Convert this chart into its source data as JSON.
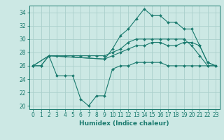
{
  "title": "",
  "xlabel": "Humidex (Indice chaleur)",
  "background_color": "#cce8e4",
  "grid_color": "#aacfcb",
  "line_color": "#1a7a6e",
  "xlim": [
    -0.5,
    23.5
  ],
  "ylim": [
    19.5,
    35.0
  ],
  "yticks": [
    20,
    22,
    24,
    26,
    28,
    30,
    32,
    34
  ],
  "xticks": [
    0,
    1,
    2,
    3,
    4,
    5,
    6,
    7,
    8,
    9,
    10,
    11,
    12,
    13,
    14,
    15,
    16,
    17,
    18,
    19,
    20,
    21,
    22,
    23
  ],
  "series": [
    {
      "x": [
        0,
        1,
        2,
        3,
        4,
        5,
        6,
        7,
        8,
        9,
        10,
        11,
        12,
        13,
        14,
        15,
        16,
        17,
        18,
        19,
        20,
        21,
        22,
        23
      ],
      "y": [
        26,
        26,
        27.5,
        24.5,
        24.5,
        24.5,
        21,
        20,
        21.5,
        21.5,
        25.5,
        26,
        26,
        26.5,
        26.5,
        26.5,
        26.5,
        26,
        26,
        26,
        26,
        26,
        26,
        26
      ]
    },
    {
      "x": [
        0,
        1,
        2,
        3,
        4,
        5,
        6,
        7,
        8,
        9,
        10,
        11,
        12,
        13,
        14,
        15,
        16,
        17,
        18,
        19,
        20,
        21,
        22,
        23
      ],
      "y": [
        26,
        26,
        27.5,
        27.5,
        27.5,
        27.5,
        27.5,
        27.5,
        27.5,
        27.5,
        28,
        28.5,
        29.5,
        30,
        30,
        30,
        30,
        30,
        30,
        30,
        29,
        27.5,
        26,
        26
      ]
    },
    {
      "x": [
        0,
        2,
        9,
        10,
        11,
        12,
        13,
        14,
        15,
        16,
        17,
        18,
        19,
        20,
        21,
        22,
        23
      ],
      "y": [
        26,
        27.5,
        27,
        28.5,
        30.5,
        31.5,
        33,
        34.5,
        33.5,
        33.5,
        32.5,
        32.5,
        31.5,
        31.5,
        29,
        26.5,
        26
      ]
    },
    {
      "x": [
        0,
        2,
        9,
        10,
        11,
        12,
        13,
        14,
        15,
        16,
        17,
        18,
        19,
        20,
        21,
        22,
        23
      ],
      "y": [
        26,
        27.5,
        27,
        27.5,
        28,
        28.5,
        29,
        29,
        29.5,
        29.5,
        29,
        29,
        29.5,
        29.5,
        29,
        26.5,
        26
      ]
    }
  ]
}
